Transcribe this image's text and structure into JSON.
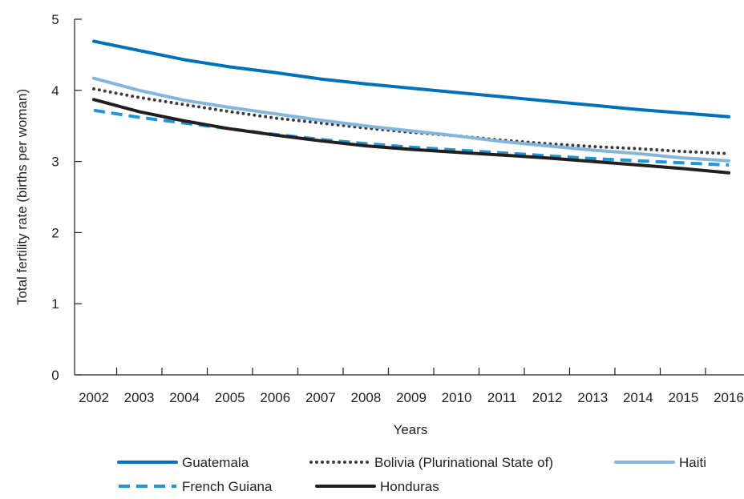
{
  "chart_data": {
    "type": "line",
    "title": "",
    "xlabel": "Years",
    "ylabel": "Total fertility rate (births per woman)",
    "ylim": [
      0,
      5
    ],
    "yticks": [
      "0",
      "1",
      "2",
      "3",
      "4",
      "5"
    ],
    "categories": [
      "2002",
      "2003",
      "2004",
      "2005",
      "2006",
      "2007",
      "2008",
      "2009",
      "2010",
      "2011",
      "2012",
      "2013",
      "2014",
      "2015",
      "2016"
    ],
    "grid": false,
    "legend_position": "bottom",
    "series": [
      {
        "name": "Guatemala",
        "color": "#0072bc",
        "dash": "solid",
        "values": [
          4.69,
          4.56,
          4.43,
          4.33,
          4.25,
          4.16,
          4.09,
          4.03,
          3.97,
          3.91,
          3.85,
          3.79,
          3.73,
          3.68,
          3.63
        ]
      },
      {
        "name": "Bolivia (Plurinational State of)",
        "color": "#3c3c3c",
        "dash": "dotted",
        "values": [
          4.02,
          3.9,
          3.8,
          3.7,
          3.61,
          3.54,
          3.47,
          3.41,
          3.36,
          3.3,
          3.25,
          3.21,
          3.18,
          3.14,
          3.11
        ]
      },
      {
        "name": "Haiti",
        "color": "#84b6dc",
        "dash": "solid",
        "values": [
          4.17,
          4.0,
          3.86,
          3.76,
          3.67,
          3.58,
          3.5,
          3.43,
          3.36,
          3.28,
          3.22,
          3.16,
          3.11,
          3.05,
          3.01
        ]
      },
      {
        "name": "French Guiana",
        "color": "#1e96d7",
        "dash": "dashed",
        "values": [
          3.72,
          3.62,
          3.54,
          3.46,
          3.38,
          3.31,
          3.25,
          3.2,
          3.16,
          3.12,
          3.08,
          3.04,
          3.01,
          2.98,
          2.95
        ]
      },
      {
        "name": "Honduras",
        "color": "#231f20",
        "dash": "solid",
        "values": [
          3.87,
          3.7,
          3.57,
          3.46,
          3.37,
          3.29,
          3.22,
          3.17,
          3.13,
          3.09,
          3.05,
          3.0,
          2.95,
          2.9,
          2.84
        ]
      }
    ],
    "legend_rows": [
      [
        "Guatemala",
        "Bolivia (Plurinational State of)",
        "Haiti"
      ],
      [
        "French Guiana",
        "Honduras"
      ]
    ]
  }
}
